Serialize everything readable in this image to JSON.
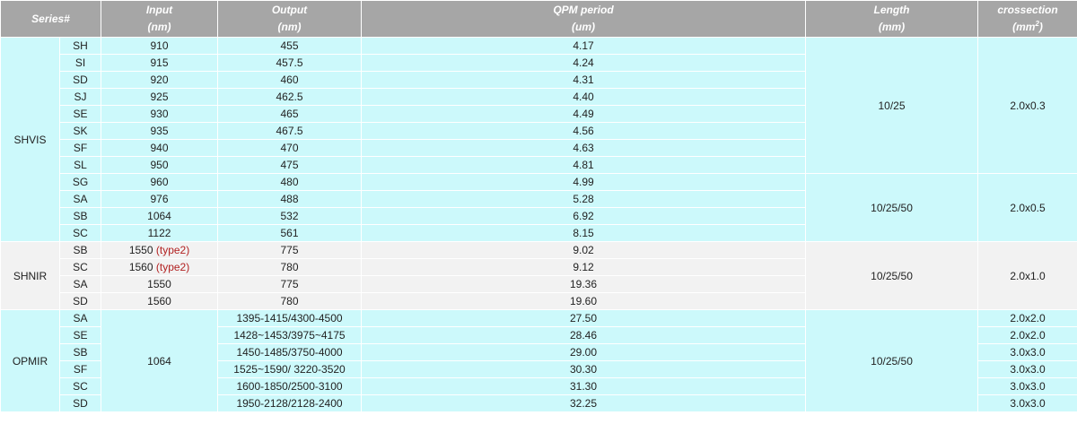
{
  "headers": {
    "series": "Series#",
    "input": [
      "Input",
      "(nm)"
    ],
    "output": [
      "Output",
      "(nm)"
    ],
    "qpm": [
      "QPM period",
      "(um)"
    ],
    "length": [
      "Length",
      "(mm)"
    ],
    "cross": [
      "crossection",
      "(mm",
      "2",
      ")"
    ]
  },
  "groups": [
    {
      "name": "SHVIS",
      "rows": [
        {
          "code": "SH",
          "input": "910",
          "note": "",
          "output": "455",
          "qpm": "4.17"
        },
        {
          "code": "SI",
          "input": "915",
          "note": "",
          "output": "457.5",
          "qpm": "4.24"
        },
        {
          "code": "SD",
          "input": "920",
          "note": "",
          "output": "460",
          "qpm": "4.31"
        },
        {
          "code": "SJ",
          "input": "925",
          "note": "",
          "output": "462.5",
          "qpm": "4.40"
        },
        {
          "code": "SE",
          "input": "930",
          "note": "",
          "output": "465",
          "qpm": "4.49"
        },
        {
          "code": "SK",
          "input": "935",
          "note": "",
          "output": "467.5",
          "qpm": "4.56"
        },
        {
          "code": "SF",
          "input": "940",
          "note": "",
          "output": "470",
          "qpm": "4.63"
        },
        {
          "code": "SL",
          "input": "950",
          "note": "",
          "output": "475",
          "qpm": "4.81"
        },
        {
          "code": "SG",
          "input": "960",
          "note": "",
          "output": "480",
          "qpm": "4.99"
        },
        {
          "code": "SA",
          "input": "976",
          "note": "",
          "output": "488",
          "qpm": "5.28"
        },
        {
          "code": "SB",
          "input": "1064",
          "note": "",
          "output": "532",
          "qpm": "6.92"
        },
        {
          "code": "SC",
          "input": "1122",
          "note": "",
          "output": "561",
          "qpm": "8.15"
        }
      ],
      "lengths": [
        {
          "span": 8,
          "value": "10/25"
        },
        {
          "span": 4,
          "value": "10/25/50"
        }
      ],
      "crosses": [
        {
          "span": 8,
          "value": "2.0x0.3"
        },
        {
          "span": 4,
          "value": "2.0x0.5"
        }
      ]
    },
    {
      "name": "SHNIR",
      "rows": [
        {
          "code": "SB",
          "input": "1550",
          "note": "(type2)",
          "output": "775",
          "qpm": "9.02"
        },
        {
          "code": "SC",
          "input": "1560",
          "note": "(type2)",
          "output": "780",
          "qpm": "9.12"
        },
        {
          "code": "SA",
          "input": "1550",
          "note": "",
          "output": "775",
          "qpm": "19.36"
        },
        {
          "code": "SD",
          "input": "1560",
          "note": "",
          "output": "780",
          "qpm": "19.60"
        }
      ],
      "lengths": [
        {
          "span": 4,
          "value": "10/25/50"
        }
      ],
      "crosses": [
        {
          "span": 4,
          "value": "2.0x1.0"
        }
      ]
    },
    {
      "name": "OPMIR",
      "input_merged": "1064",
      "rows": [
        {
          "code": "SA",
          "output": "1395-1415/4300-4500",
          "qpm": "27.50"
        },
        {
          "code": "SE",
          "output": "1428~1453/3975~4175",
          "qpm": "28.46"
        },
        {
          "code": "SB",
          "output": "1450-1485/3750-4000",
          "qpm": "29.00"
        },
        {
          "code": "SF",
          "output": "1525~1590/ 3220-3520",
          "qpm": "30.30"
        },
        {
          "code": "SC",
          "output": "1600-1850/2500-3100",
          "qpm": "31.30"
        },
        {
          "code": "SD",
          "output": "1950-2128/2128-2400",
          "qpm": "32.25"
        }
      ],
      "lengths": [
        {
          "span": 6,
          "value": "10/25/50"
        }
      ],
      "crosses": [
        {
          "span": 1,
          "value": "2.0x2.0"
        },
        {
          "span": 1,
          "value": "2.0x2.0"
        },
        {
          "span": 1,
          "value": "3.0x3.0"
        },
        {
          "span": 1,
          "value": "3.0x3.0"
        },
        {
          "span": 1,
          "value": "3.0x3.0"
        },
        {
          "span": 1,
          "value": "3.0x3.0"
        }
      ]
    }
  ],
  "colors": {
    "header": "#a6a6a6",
    "cyan": "#ccf9fb",
    "gray": "#f2f2f2",
    "note": "#b22222"
  }
}
